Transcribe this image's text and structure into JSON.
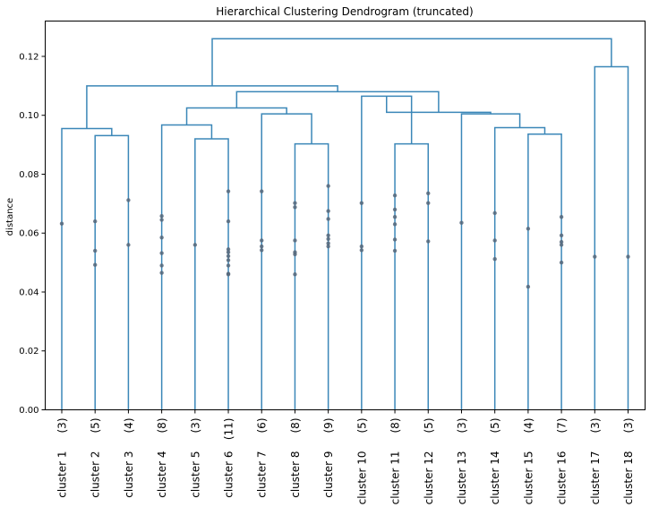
{
  "chart_data": {
    "type": "dendrogram",
    "title": "Hierarchical Clustering Dendrogram (truncated)",
    "ylabel": "distance",
    "ylim": [
      0,
      0.132
    ],
    "yticks": [
      "0.00",
      "0.02",
      "0.04",
      "0.06",
      "0.08",
      "0.10",
      "0.12"
    ],
    "ytick_values": [
      0,
      0.02,
      0.04,
      0.06,
      0.08,
      0.1,
      0.12
    ],
    "line_color": "#3b87b8",
    "dot_color": "#56677a",
    "leaves": [
      {
        "count": "(3)",
        "label": "cluster 1"
      },
      {
        "count": "(5)",
        "label": "cluster 2"
      },
      {
        "count": "(4)",
        "label": "cluster 3"
      },
      {
        "count": "(8)",
        "label": "cluster 4"
      },
      {
        "count": "(3)",
        "label": "cluster 5"
      },
      {
        "count": "(11)",
        "label": "cluster 6"
      },
      {
        "count": "(6)",
        "label": "cluster 7"
      },
      {
        "count": "(8)",
        "label": "cluster 8"
      },
      {
        "count": "(9)",
        "label": "cluster 9"
      },
      {
        "count": "(5)",
        "label": "cluster 10"
      },
      {
        "count": "(8)",
        "label": "cluster 11"
      },
      {
        "count": "(5)",
        "label": "cluster 12"
      },
      {
        "count": "(3)",
        "label": "cluster 13"
      },
      {
        "count": "(5)",
        "label": "cluster 14"
      },
      {
        "count": "(4)",
        "label": "cluster 15"
      },
      {
        "count": "(7)",
        "label": "cluster 16"
      },
      {
        "count": "(3)",
        "label": "cluster 17"
      },
      {
        "count": "(3)",
        "label": "cluster 18"
      }
    ],
    "merges": [
      {
        "left": 0,
        "right": 1,
        "height": 0.0955
      },
      {
        "left": 1,
        "right": 2,
        "height": 0.0931
      },
      {
        "left": 3,
        "right": 4,
        "height": 0.0967
      },
      {
        "left": 4,
        "right": 5,
        "height": 0.092
      },
      {
        "left": 6,
        "right": 7,
        "height": 0.1005
      },
      {
        "left": 7,
        "right": 8,
        "height": 0.0903
      },
      {
        "left": 9,
        "right": 10,
        "height": 0.1065
      },
      {
        "left": 10,
        "right": 11,
        "height": 0.0903
      },
      {
        "left": 12,
        "right": 13,
        "height": 0.1005
      },
      {
        "left": 13,
        "right": 14,
        "height": 0.0958
      },
      {
        "left": 14,
        "right": 15,
        "height": 0.0936
      },
      {
        "left": 16,
        "right": 17,
        "height": 0.1165
      },
      {
        "left": "A",
        "right": "B",
        "height": 0.1025
      },
      {
        "left": "AB",
        "right": "C",
        "height": 0.108
      },
      {
        "left": "D",
        "right": "E",
        "height": 0.11
      },
      {
        "left": "F",
        "right": "G",
        "height": 0.126
      }
    ],
    "leaf_points": [
      [
        0.0632
      ],
      [
        0.064,
        0.054,
        0.0492
      ],
      [
        0.0712,
        0.056
      ],
      [
        0.0658,
        0.0645,
        0.0585,
        0.0532,
        0.049,
        0.0465
      ],
      [
        0.056
      ],
      [
        0.0742,
        0.064,
        0.0545,
        0.0535,
        0.0522,
        0.0508,
        0.049,
        0.0462,
        0.046
      ],
      [
        0.0742,
        0.0575,
        0.0555,
        0.0542
      ],
      [
        0.0702,
        0.0688,
        0.0575,
        0.0535,
        0.0528,
        0.046
      ],
      [
        0.076,
        0.0675,
        0.0648,
        0.0592,
        0.058,
        0.0565,
        0.0555
      ],
      [
        0.0702,
        0.0555,
        0.0542
      ],
      [
        0.0728,
        0.068,
        0.0655,
        0.063,
        0.0578,
        0.054
      ],
      [
        0.0735,
        0.0702,
        0.0572
      ],
      [
        0.0635
      ],
      [
        0.0668,
        0.0575,
        0.0512
      ],
      [
        0.0615,
        0.0418
      ],
      [
        0.0655,
        0.0592,
        0.057,
        0.056,
        0.05
      ],
      [
        0.052
      ],
      [
        0.052
      ]
    ]
  }
}
